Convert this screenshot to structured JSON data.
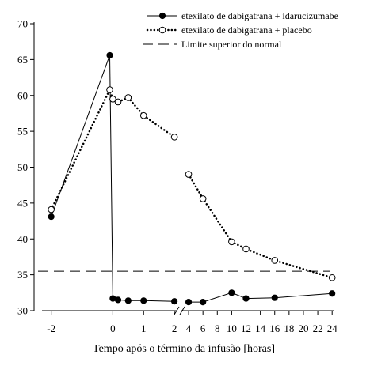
{
  "chart_data": {
    "type": "line",
    "xlabel": "Tempo após o término da infusão [horas]",
    "ylabel": "",
    "ylim": [
      30,
      70
    ],
    "yticks": [
      30,
      35,
      40,
      45,
      50,
      55,
      60,
      65,
      70
    ],
    "xaxis_segments": [
      {
        "range": [
          -2.3,
          2.1
        ],
        "ticks": [
          -2,
          0,
          1,
          2
        ],
        "tick_labels": [
          "-2",
          "0",
          "1",
          "2"
        ]
      },
      {
        "range": [
          3.0,
          24.2
        ],
        "ticks": [
          4,
          6,
          8,
          10,
          12,
          14,
          16,
          18,
          20,
          22,
          24
        ],
        "tick_labels": [
          "4",
          "6",
          "8",
          "10",
          "12",
          "14",
          "16",
          "18",
          "20",
          "22",
          "24"
        ]
      }
    ],
    "axis_break_at_x": 3,
    "legend_position": "top-right",
    "grid": false,
    "series": [
      {
        "name": "etexilato de dabigatrana + idarucizumabe",
        "line_style": "solid",
        "marker": "filled-circle",
        "color": "#000000",
        "segments": [
          [
            [
              -2,
              43.1
            ],
            [
              -0.1,
              65.6
            ],
            [
              0,
              31.7
            ],
            [
              0.17,
              31.5
            ],
            [
              0.5,
              31.4
            ],
            [
              1,
              31.4
            ],
            [
              2,
              31.3
            ]
          ],
          [
            [
              4,
              31.2
            ],
            [
              6,
              31.2
            ],
            [
              10,
              32.5
            ],
            [
              12,
              31.7
            ],
            [
              16,
              31.8
            ],
            [
              24,
              32.4
            ]
          ]
        ]
      },
      {
        "name": "etexilato de dabigatrana + placebo",
        "line_style": "dotted",
        "marker": "open-circle",
        "color": "#000000",
        "segments": [
          [
            [
              -2,
              44.1
            ],
            [
              -0.1,
              60.8
            ],
            [
              0,
              59.5
            ],
            [
              0.17,
              59.1
            ],
            [
              0.5,
              59.7
            ],
            [
              1,
              57.2
            ],
            [
              2,
              54.2
            ]
          ],
          [
            [
              4,
              49.0
            ],
            [
              6,
              45.6
            ],
            [
              10,
              39.6
            ],
            [
              12,
              38.6
            ],
            [
              16,
              37.0
            ],
            [
              24,
              34.6
            ]
          ]
        ]
      },
      {
        "name": "Limite superior do normal",
        "line_style": "dashed",
        "marker": "none",
        "color": "#000000",
        "constant_y": 35.5
      }
    ]
  }
}
